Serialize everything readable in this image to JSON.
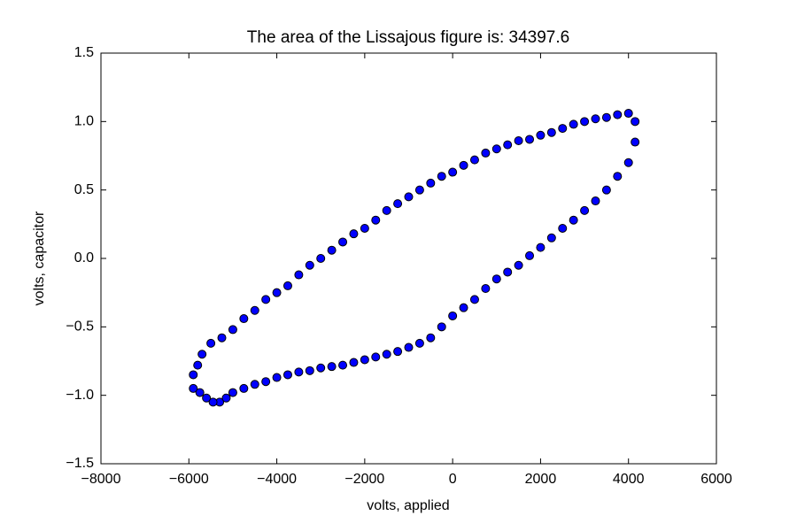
{
  "chart_data": {
    "type": "scatter",
    "title": "The area of the Lissajous figure is: 34397.6",
    "xlabel": "volts, applied",
    "ylabel": "volts, capacitor",
    "color": "#0000ff",
    "edgecolor": "#000000",
    "xlim": [
      -8000,
      6000
    ],
    "ylim": [
      -1.5,
      1.5
    ],
    "xticks": [
      {
        "value": -8000,
        "label": "−8000"
      },
      {
        "value": -6000,
        "label": "−6000"
      },
      {
        "value": -4000,
        "label": "−4000"
      },
      {
        "value": -2000,
        "label": "−2000"
      },
      0,
      2000,
      4000,
      6000
    ],
    "yticks": [
      {
        "value": -1.5,
        "label": "−1.5"
      },
      {
        "value": -1.0,
        "label": "−1.0"
      },
      {
        "value": -0.5,
        "label": "−0.5"
      },
      {
        "value": 0,
        "label": "0.0"
      },
      0.5,
      {
        "value": 1.0,
        "label": "1.0"
      },
      1.5
    ],
    "x": [
      -5900,
      -5700,
      -5500,
      -5000,
      -4500,
      -4000,
      -3500,
      -3000,
      -2500,
      -2000,
      -1500,
      -1000,
      -500,
      0,
      500,
      1000,
      1500,
      2000,
      2500,
      3000,
      3500,
      4000,
      4150,
      -5800,
      -5250,
      -4750,
      -4250,
      -3750,
      -3250,
      -2750,
      -2250,
      -1750,
      -1250,
      -750,
      -250,
      250,
      750,
      1250,
      1750,
      2250,
      2750,
      3250,
      3750,
      4150,
      4000,
      3500,
      3000,
      2500,
      2000,
      1500,
      1000,
      500,
      0,
      -500,
      -1000,
      -1500,
      -2000,
      -2500,
      -3000,
      -3500,
      -4000,
      -4500,
      -5000,
      -5300,
      -5600,
      -5900,
      3750,
      3250,
      2750,
      2250,
      1750,
      1250,
      750,
      250,
      -250,
      -750,
      -1250,
      -1750,
      -2250,
      -2750,
      -3250,
      -3750,
      -4250,
      -4750,
      -5150,
      -5450,
      -5750
    ],
    "y": [
      -0.85,
      -0.7,
      -0.62,
      -0.52,
      -0.38,
      -0.25,
      -0.12,
      0.0,
      0.12,
      0.22,
      0.35,
      0.45,
      0.55,
      0.63,
      0.72,
      0.8,
      0.86,
      0.9,
      0.95,
      1.0,
      1.03,
      1.06,
      1.0,
      -0.78,
      -0.58,
      -0.44,
      -0.3,
      -0.2,
      -0.05,
      0.06,
      0.18,
      0.28,
      0.4,
      0.5,
      0.6,
      0.68,
      0.77,
      0.83,
      0.87,
      0.92,
      0.98,
      1.02,
      1.05,
      0.85,
      0.7,
      0.5,
      0.35,
      0.22,
      0.08,
      -0.05,
      -0.15,
      -0.3,
      -0.42,
      -0.58,
      -0.65,
      -0.7,
      -0.74,
      -0.78,
      -0.8,
      -0.83,
      -0.87,
      -0.92,
      -0.98,
      -1.05,
      -1.02,
      -0.95,
      0.6,
      0.42,
      0.28,
      0.15,
      0.02,
      -0.1,
      -0.22,
      -0.36,
      -0.5,
      -0.62,
      -0.68,
      -0.72,
      -0.76,
      -0.79,
      -0.82,
      -0.85,
      -0.9,
      -0.95,
      -1.02,
      -1.05,
      -0.98
    ]
  }
}
